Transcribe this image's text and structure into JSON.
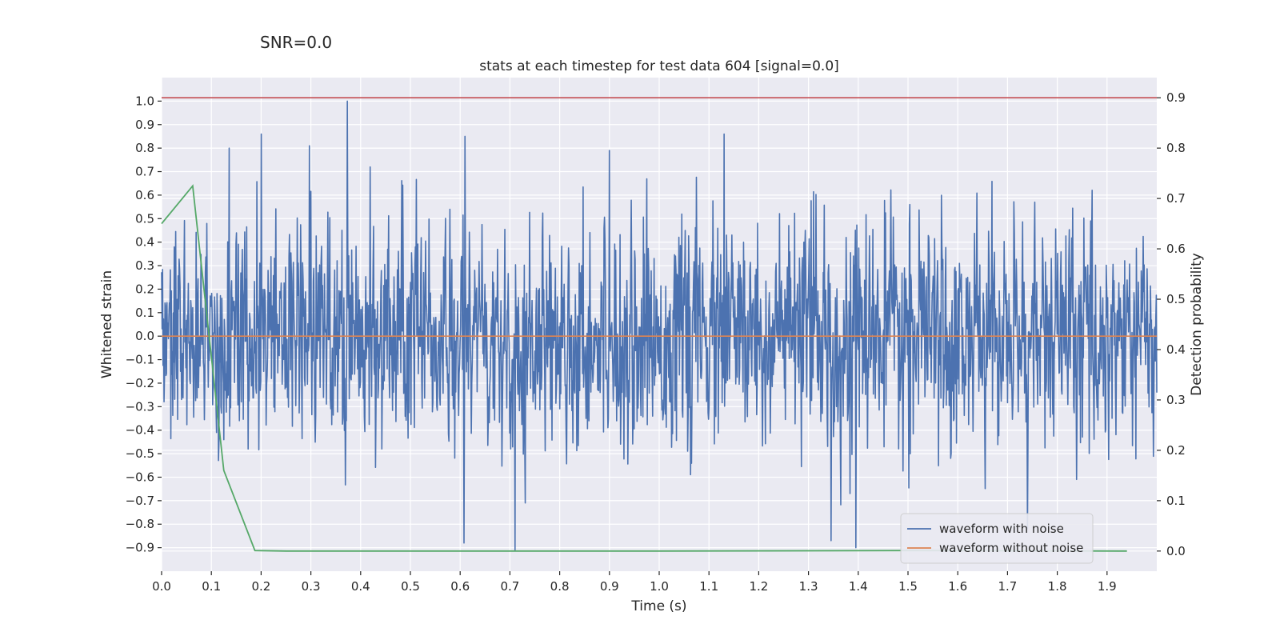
{
  "suptitle": "SNR=0.0",
  "chart_data": {
    "type": "line",
    "title": "stats at each timestep for test data 604 [signal=0.0]",
    "xlabel": "Time (s)",
    "ylabel": "Whitened strain",
    "y2label": "Detection probability",
    "xlim": [
      0.0,
      2.0
    ],
    "ylim": [
      -1.0,
      1.1
    ],
    "y2lim": [
      -0.04,
      0.94
    ],
    "xticks": [
      0.0,
      0.1,
      0.2,
      0.3,
      0.4,
      0.5,
      0.6,
      0.7,
      0.8,
      0.9,
      1.0,
      1.1,
      1.2,
      1.3,
      1.4,
      1.5,
      1.6,
      1.7,
      1.8,
      1.9
    ],
    "xtick_labels": [
      "0.0",
      "0.1",
      "0.2",
      "0.3",
      "0.4",
      "0.5",
      "0.6",
      "0.7",
      "0.8",
      "0.9",
      "1.0",
      "1.1",
      "1.2",
      "1.3",
      "1.4",
      "1.5",
      "1.6",
      "1.7",
      "1.8",
      "1.9"
    ],
    "yticks": [
      1.0,
      0.9,
      0.8,
      0.7,
      0.6,
      0.5,
      0.4,
      0.3,
      0.2,
      0.1,
      0.0,
      -0.1,
      -0.2,
      -0.3,
      -0.4,
      -0.5,
      -0.6,
      -0.7,
      -0.8,
      -0.9
    ],
    "ytick_labels": [
      "1.0",
      "0.9",
      "0.8",
      "0.7",
      "0.6",
      "0.5",
      "0.4",
      "0.3",
      "0.2",
      "0.1",
      "0.0",
      "−0.1",
      "−0.2",
      "−0.3",
      "−0.4",
      "−0.5",
      "−0.6",
      "−0.7",
      "−0.8",
      "−0.9"
    ],
    "y2ticks": [
      0.9,
      0.8,
      0.7,
      0.6,
      0.5,
      0.4,
      0.3,
      0.2,
      0.1,
      0.0
    ],
    "y2tick_labels": [
      "0.9",
      "0.8",
      "0.7",
      "0.6",
      "0.5",
      "0.4",
      "0.3",
      "0.2",
      "0.1",
      "0.0"
    ],
    "legend_position": "lower-right",
    "series": [
      {
        "name": "waveform with noise",
        "axis": "left",
        "color": "#4c72b0",
        "kind": "noise",
        "sample_count": 2048,
        "std": 0.27,
        "x_range": [
          0.0,
          2.0
        ],
        "peaks": [
          {
            "x": 0.373,
            "y": 1.0
          },
          {
            "x": 0.2,
            "y": 0.86
          },
          {
            "x": 0.61,
            "y": 0.85
          },
          {
            "x": 1.13,
            "y": 0.86
          },
          {
            "x": 0.9,
            "y": 0.79
          },
          {
            "x": 0.297,
            "y": 0.81
          },
          {
            "x": 0.136,
            "y": 0.8
          },
          {
            "x": 0.71,
            "y": -0.91
          },
          {
            "x": 1.395,
            "y": -0.9
          },
          {
            "x": 0.608,
            "y": -0.88
          },
          {
            "x": 1.345,
            "y": -0.87
          },
          {
            "x": 1.74,
            "y": -0.82
          }
        ]
      },
      {
        "name": "waveform without noise",
        "axis": "left",
        "color": "#dd8452",
        "kind": "constant",
        "value": 0.0
      },
      {
        "name": "threshold",
        "axis": "right",
        "color": "#c44e52",
        "kind": "constant",
        "value": 0.9,
        "in_legend": false
      },
      {
        "name": "detection probability",
        "axis": "right",
        "color": "#55a868",
        "kind": "line",
        "in_legend": false,
        "x": [
          0.0,
          0.0625,
          0.125,
          0.1875,
          0.25,
          0.5,
          1.0,
          1.5,
          1.94
        ],
        "y": [
          0.65,
          0.725,
          0.16,
          0.001,
          0.0,
          0.0,
          0.0,
          0.001,
          0.0
        ]
      }
    ]
  }
}
